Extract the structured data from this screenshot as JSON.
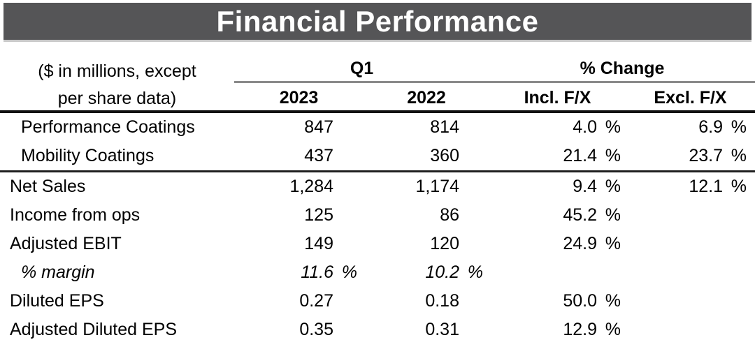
{
  "header": {
    "title": "Financial Performance"
  },
  "chart_data": {
    "type": "table",
    "title": "Financial Performance",
    "unit_note_lines": [
      "($ in millions, except",
      "per share data)"
    ],
    "column_groups": [
      {
        "label": "Q1",
        "spans": [
          "2023",
          "2022"
        ]
      },
      {
        "label": "% Change",
        "spans": [
          "Incl. F/X",
          "Excl. F/X"
        ]
      }
    ],
    "columns": [
      "2023",
      "2022",
      "Incl. F/X",
      "Excl. F/X"
    ],
    "rows": [
      {
        "label": "Performance Coatings",
        "indent": true,
        "italic": false,
        "rule_below": false,
        "values": [
          "847",
          "814",
          "4.0 %",
          "6.9 %"
        ]
      },
      {
        "label": "Mobility Coatings",
        "indent": true,
        "italic": false,
        "rule_below": true,
        "values": [
          "437",
          "360",
          "21.4 %",
          "23.7 %"
        ]
      },
      {
        "label": "Net Sales",
        "indent": false,
        "italic": false,
        "rule_below": false,
        "values": [
          "1,284",
          "1,174",
          "9.4 %",
          "12.1 %"
        ]
      },
      {
        "label": "Income from ops",
        "indent": false,
        "italic": false,
        "rule_below": false,
        "values": [
          "125",
          "86",
          "45.2 %",
          ""
        ]
      },
      {
        "label": "Adjusted EBIT",
        "indent": false,
        "italic": false,
        "rule_below": false,
        "values": [
          "149",
          "120",
          "24.9 %",
          ""
        ]
      },
      {
        "label": "% margin",
        "indent": true,
        "italic": true,
        "rule_below": false,
        "values": [
          "11.6 %",
          "10.2 %",
          "",
          ""
        ]
      },
      {
        "label": "Diluted EPS",
        "indent": false,
        "italic": false,
        "rule_below": false,
        "values": [
          "0.27",
          "0.18",
          "50.0 %",
          ""
        ]
      },
      {
        "label": "Adjusted Diluted EPS",
        "indent": false,
        "italic": false,
        "rule_below": false,
        "values": [
          "0.35",
          "0.31",
          "12.9 %",
          ""
        ]
      }
    ]
  },
  "colors": {
    "title_bar_background": "#555557",
    "title_text": "#ffffff",
    "bar_shadow": "#c9c9c9",
    "heavy_rule": "#111111",
    "section_rule": "#1f1f1f",
    "spanner_underline": "#8a8a8a",
    "text": "#000000"
  }
}
